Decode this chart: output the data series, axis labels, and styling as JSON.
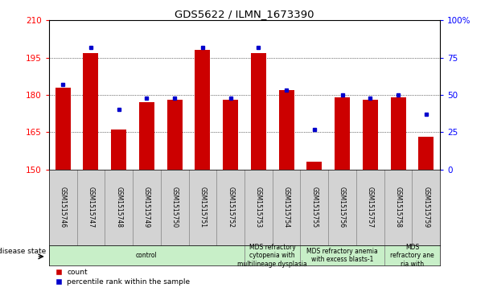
{
  "title": "GDS5622 / ILMN_1673390",
  "samples": [
    "GSM1515746",
    "GSM1515747",
    "GSM1515748",
    "GSM1515749",
    "GSM1515750",
    "GSM1515751",
    "GSM1515752",
    "GSM1515753",
    "GSM1515754",
    "GSM1515755",
    "GSM1515756",
    "GSM1515757",
    "GSM1515758",
    "GSM1515759"
  ],
  "counts": [
    183,
    197,
    166,
    177,
    178,
    198,
    178,
    197,
    182,
    153,
    179,
    178,
    179,
    163
  ],
  "percentiles": [
    57,
    82,
    40,
    48,
    48,
    82,
    48,
    82,
    53,
    27,
    50,
    48,
    50,
    37
  ],
  "y_min": 150,
  "y_max": 210,
  "y_ticks_red": [
    150,
    165,
    180,
    195,
    210
  ],
  "y_ticks_blue": [
    0,
    25,
    50,
    75,
    100
  ],
  "disease_groups": [
    {
      "label": "control",
      "start": 0,
      "end": 7
    },
    {
      "label": "MDS refractory\ncytopenia with\nmultilineage dysplasia",
      "start": 7,
      "end": 9
    },
    {
      "label": "MDS refractory anemia\nwith excess blasts-1",
      "start": 9,
      "end": 12
    },
    {
      "label": "MDS\nrefractory ane\nria with",
      "start": 12,
      "end": 14
    }
  ],
  "bar_color": "#cc0000",
  "dot_color": "#0000cc",
  "sample_bg": "#d3d3d3",
  "disease_bg": "#c8efc8",
  "plot_bg": "#ffffff"
}
